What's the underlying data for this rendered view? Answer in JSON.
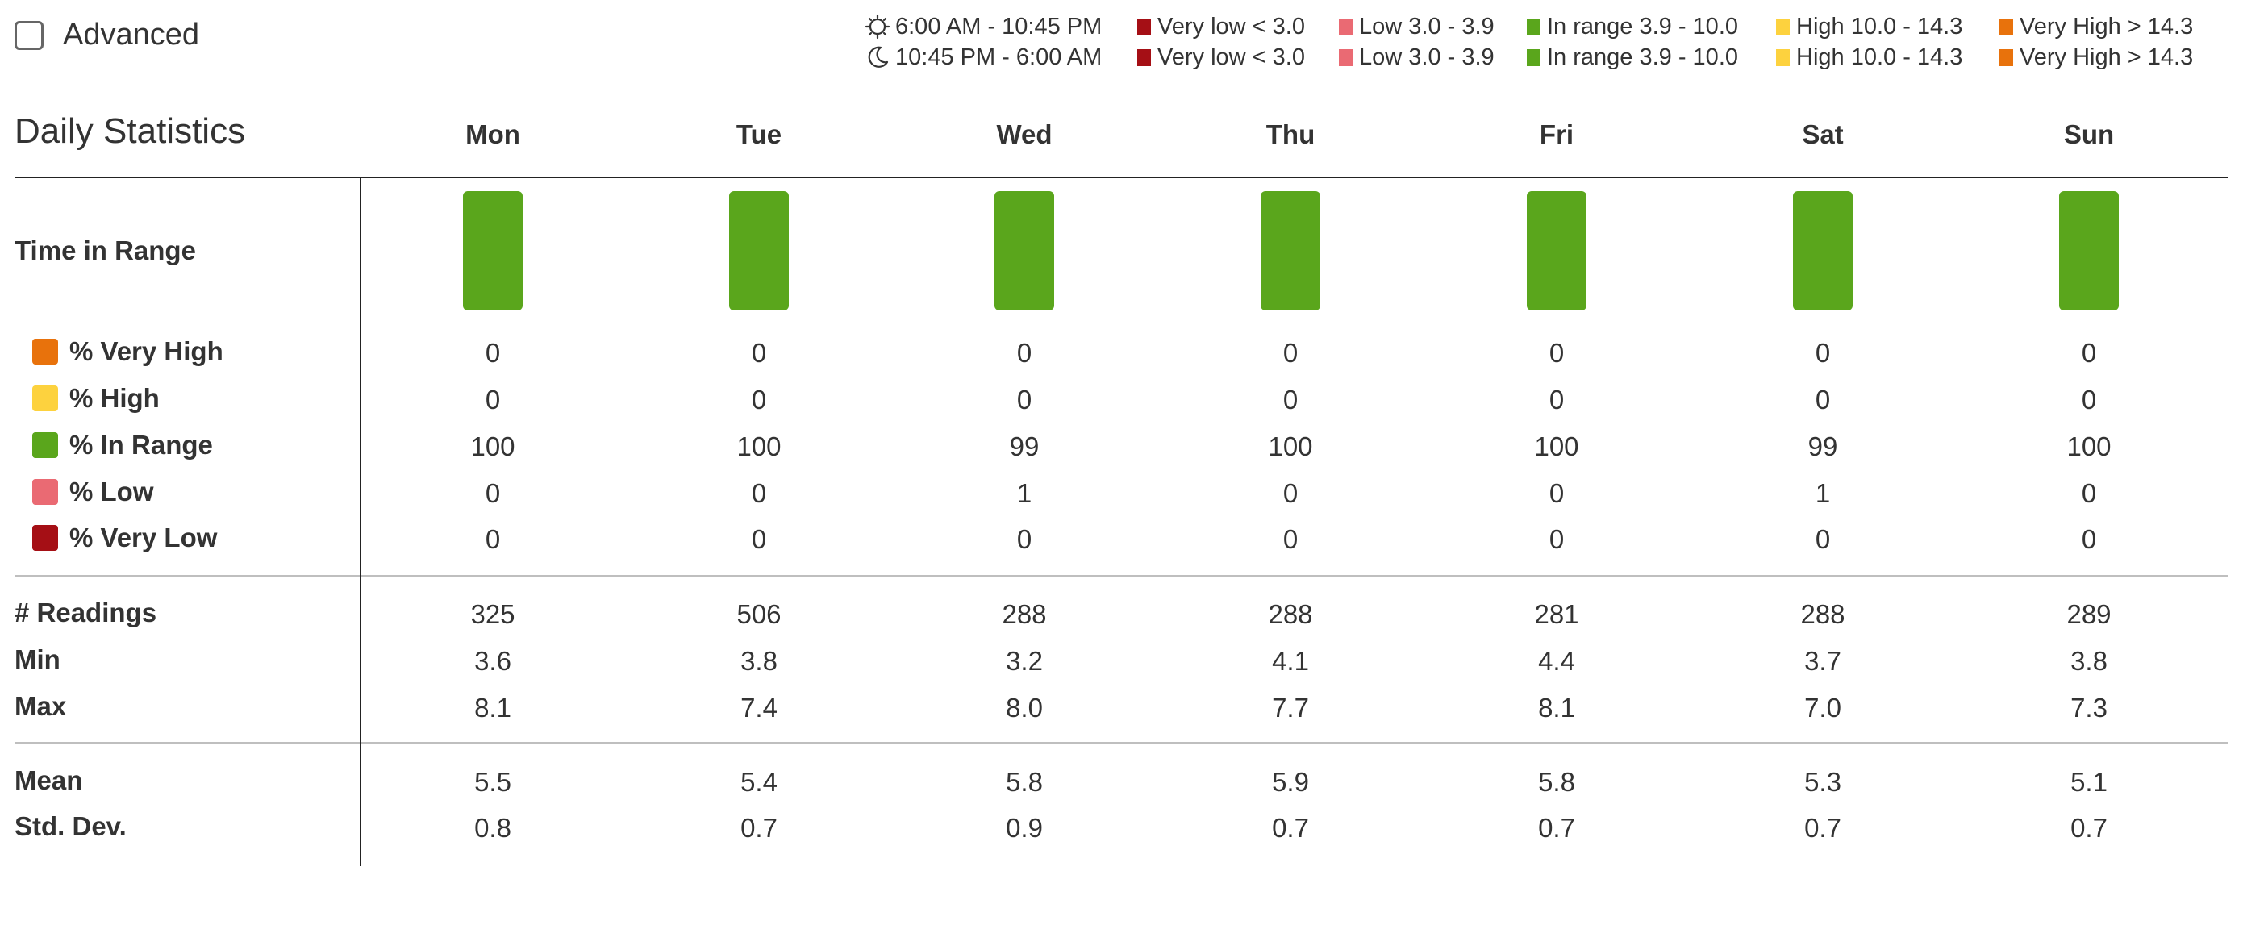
{
  "advanced": {
    "label": "Advanced",
    "checked": false
  },
  "legend": {
    "rows": [
      {
        "time": "6:00 AM - 10:45 PM",
        "icon": "sun-icon"
      },
      {
        "time": "10:45 PM - 6:00 AM",
        "icon": "moon-icon"
      }
    ],
    "items": [
      {
        "label": "Very low < 3.0",
        "color": "#a50f15"
      },
      {
        "label": "Low 3.0 - 3.9",
        "color": "#ea6a73"
      },
      {
        "label": "In range 3.9 - 10.0",
        "color": "#5aa61c"
      },
      {
        "label": "High 10.0 - 14.3",
        "color": "#fdd23e"
      },
      {
        "label": "Very High > 14.3",
        "color": "#e8720c"
      }
    ]
  },
  "title": "Daily Statistics",
  "days": [
    "Mon",
    "Tue",
    "Wed",
    "Thu",
    "Fri",
    "Sat",
    "Sun"
  ],
  "labels": {
    "time_in_range": "Time in Range",
    "very_high": "% Very High",
    "high": "% High",
    "in_range": "% In Range",
    "low": "% Low",
    "very_low": "% Very Low",
    "readings": "# Readings",
    "min": "Min",
    "max": "Max",
    "mean": "Mean",
    "std_dev": "Std. Dev."
  },
  "colors": {
    "very_high": "#e8720c",
    "high": "#fdd23e",
    "in_range": "#5aa61c",
    "low": "#ea6a73",
    "very_low": "#a50f15"
  },
  "stats": {
    "very_high": [
      "0",
      "0",
      "0",
      "0",
      "0",
      "0",
      "0"
    ],
    "high": [
      "0",
      "0",
      "0",
      "0",
      "0",
      "0",
      "0"
    ],
    "in_range": [
      "100",
      "100",
      "99",
      "100",
      "100",
      "99",
      "100"
    ],
    "low": [
      "0",
      "0",
      "1",
      "0",
      "0",
      "1",
      "0"
    ],
    "very_low": [
      "0",
      "0",
      "0",
      "0",
      "0",
      "0",
      "0"
    ],
    "readings": [
      "325",
      "506",
      "288",
      "288",
      "281",
      "288",
      "289"
    ],
    "min": [
      "3.6",
      "3.8",
      "3.2",
      "4.1",
      "4.4",
      "3.7",
      "3.8"
    ],
    "max": [
      "8.1",
      "7.4",
      "8.0",
      "7.7",
      "8.1",
      "7.0",
      "7.3"
    ],
    "mean": [
      "5.5",
      "5.4",
      "5.8",
      "5.9",
      "5.8",
      "5.3",
      "5.1"
    ],
    "std_dev": [
      "0.8",
      "0.7",
      "0.9",
      "0.7",
      "0.7",
      "0.7",
      "0.7"
    ]
  }
}
